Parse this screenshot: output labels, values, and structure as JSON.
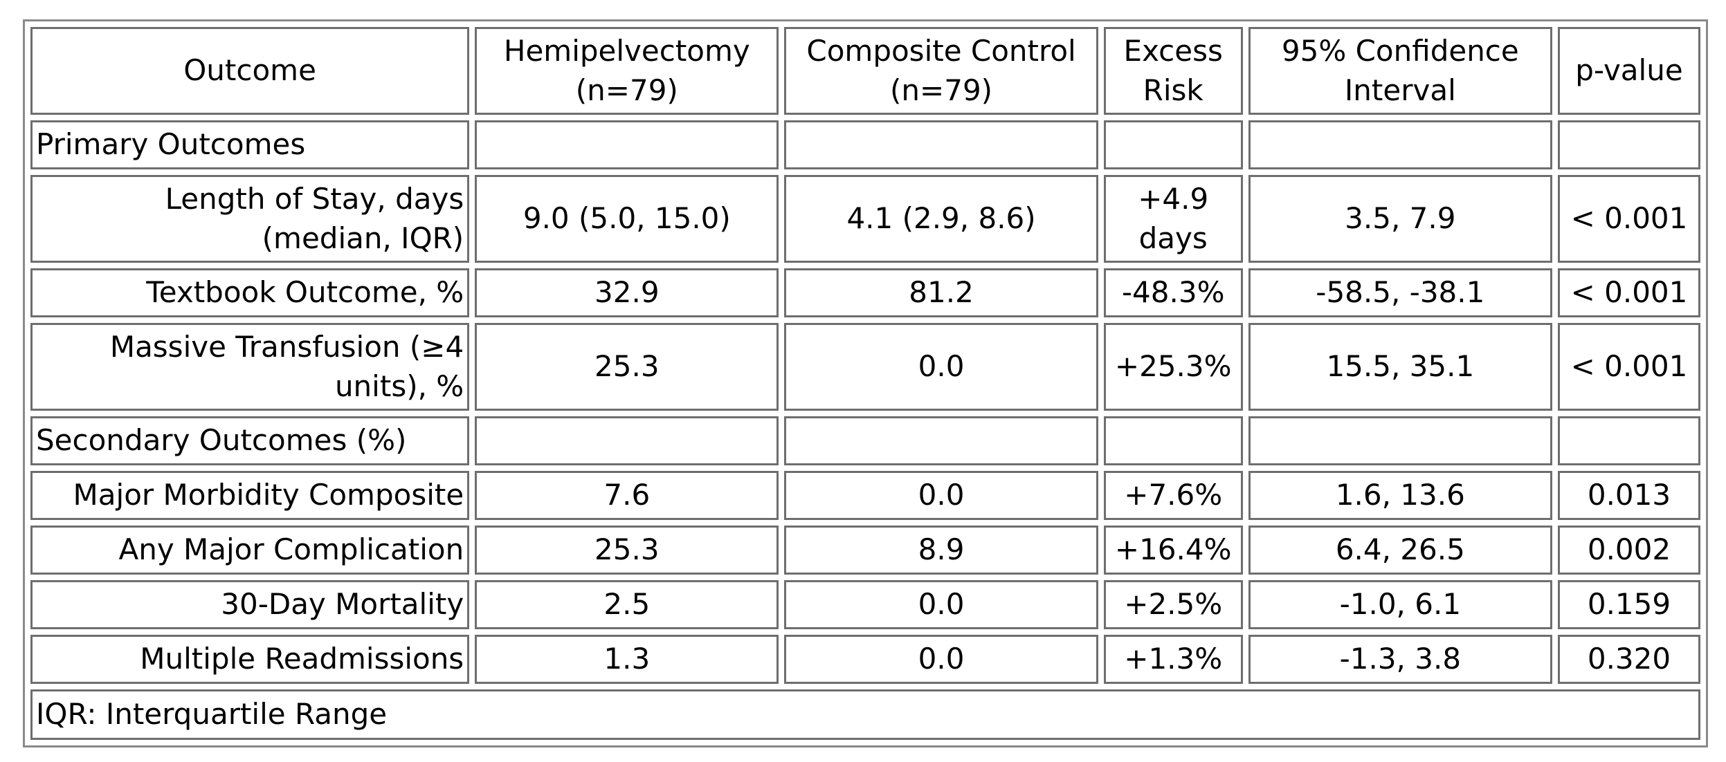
{
  "headers": {
    "outcome": "Outcome",
    "hemi": "Hemipelvectomy (n=79)",
    "control": "Composite Control (n=79)",
    "excess": "Excess Risk",
    "ci": "95% Confidence Interval",
    "p": "p-value"
  },
  "sections": {
    "primary": "Primary Outcomes",
    "secondary": "Secondary Outcomes (%)"
  },
  "rows": [
    {
      "outcome": "Length of Stay, days (median, IQR)",
      "hemi": "9.0 (5.0, 15.0)",
      "control": "4.1 (2.9, 8.6)",
      "excess": "+4.9 days",
      "ci": "3.5, 7.9",
      "p": "< 0.001"
    },
    {
      "outcome": "Textbook Outcome, %",
      "hemi": "32.9",
      "control": "81.2",
      "excess": "-48.3%",
      "ci": "-58.5, -38.1",
      "p": "< 0.001"
    },
    {
      "outcome": "Massive Transfusion (≥4 units), %",
      "hemi": "25.3",
      "control": "0.0",
      "excess": "+25.3%",
      "ci": "15.5, 35.1",
      "p": "< 0.001"
    },
    {
      "outcome": "Major Morbidity Composite",
      "hemi": "7.6",
      "control": "0.0",
      "excess": "+7.6%",
      "ci": "1.6, 13.6",
      "p": "0.013"
    },
    {
      "outcome": "Any Major Complication",
      "hemi": "25.3",
      "control": "8.9",
      "excess": "+16.4%",
      "ci": "6.4, 26.5",
      "p": "0.002"
    },
    {
      "outcome": "30-Day Mortality",
      "hemi": "2.5",
      "control": "0.0",
      "excess": "+2.5%",
      "ci": "-1.0, 6.1",
      "p": "0.159"
    },
    {
      "outcome": "Multiple Readmissions",
      "hemi": "1.3",
      "control": "0.0",
      "excess": "+1.3%",
      "ci": "-1.3, 3.8",
      "p": "0.320"
    }
  ],
  "footnote": "IQR: Interquartile Range"
}
